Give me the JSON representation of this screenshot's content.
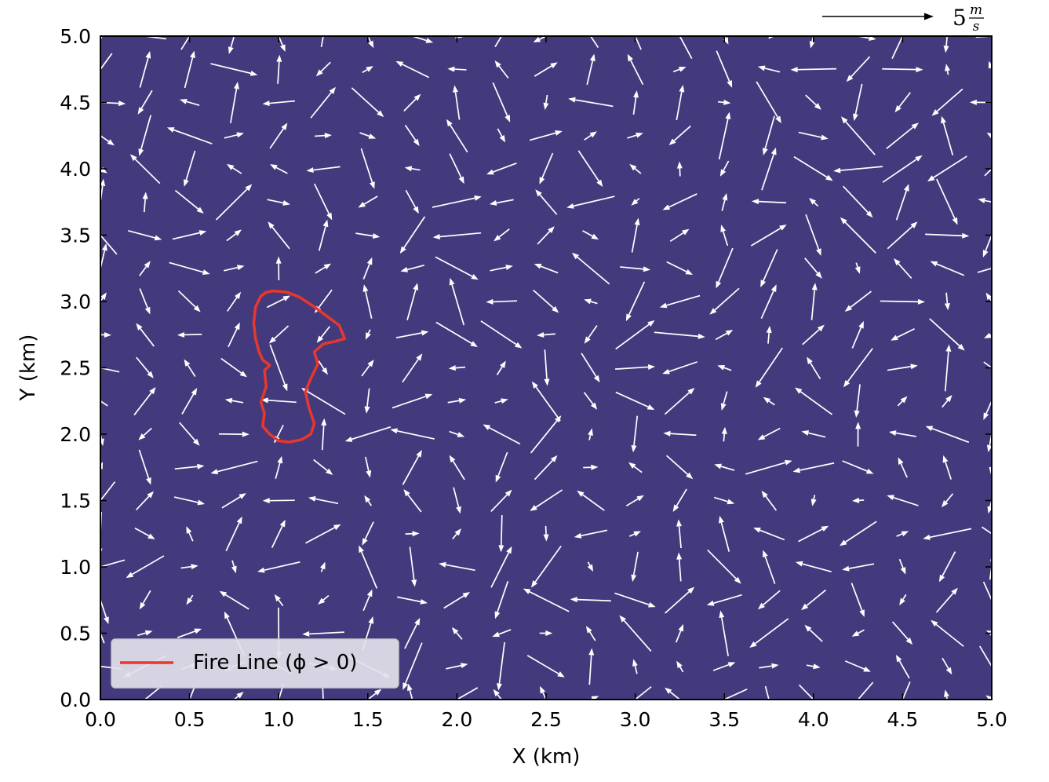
{
  "chart_data": {
    "type": "quiver",
    "xlabel": "X (km)",
    "ylabel": "Y (km)",
    "xlim": [
      0.0,
      5.0
    ],
    "ylim": [
      0.0,
      5.0
    ],
    "x_ticks": [
      "0.0",
      "0.5",
      "1.0",
      "1.5",
      "2.0",
      "2.5",
      "3.0",
      "3.5",
      "4.0",
      "4.5",
      "5.0"
    ],
    "y_ticks": [
      "0.0",
      "0.5",
      "1.0",
      "1.5",
      "2.0",
      "2.5",
      "3.0",
      "3.5",
      "4.0",
      "4.5",
      "5.0"
    ],
    "grid": false,
    "background_color": "#433a7e",
    "arrow_color": "#ffffff",
    "line_color": "#e8372c",
    "legend": {
      "placement": "lower-left",
      "entries": [
        {
          "label": "Fire Line (ϕ > 0)",
          "color": "#e8372c"
        }
      ]
    },
    "quiver_key": {
      "value": "5",
      "unit_num": "m",
      "unit_den": "s",
      "speed": 5
    },
    "wind_field": {
      "x_start": 0.0,
      "y_start": 0.0,
      "step": 0.25,
      "count": 21,
      "typical_speed_range_mps": [
        1,
        5
      ]
    },
    "series": [
      {
        "name": "Fire Line (ϕ > 0)",
        "x": [
          0.97,
          1.05,
          1.12,
          1.2,
          1.28,
          1.34,
          1.37,
          1.32,
          1.25,
          1.2,
          1.22,
          1.18,
          1.15,
          1.17,
          1.2,
          1.18,
          1.13,
          1.06,
          1.0,
          0.95,
          0.91,
          0.92,
          0.9,
          0.93,
          0.92,
          0.95,
          0.91,
          0.89,
          0.87,
          0.86,
          0.87,
          0.9,
          0.93,
          0.97
        ],
        "y": [
          3.08,
          3.07,
          3.03,
          2.96,
          2.88,
          2.82,
          2.72,
          2.7,
          2.68,
          2.62,
          2.53,
          2.42,
          2.32,
          2.2,
          2.08,
          2.0,
          1.96,
          1.94,
          1.95,
          2.0,
          2.06,
          2.16,
          2.24,
          2.36,
          2.48,
          2.52,
          2.56,
          2.62,
          2.72,
          2.84,
          2.96,
          3.04,
          3.07,
          3.08
        ]
      }
    ]
  }
}
